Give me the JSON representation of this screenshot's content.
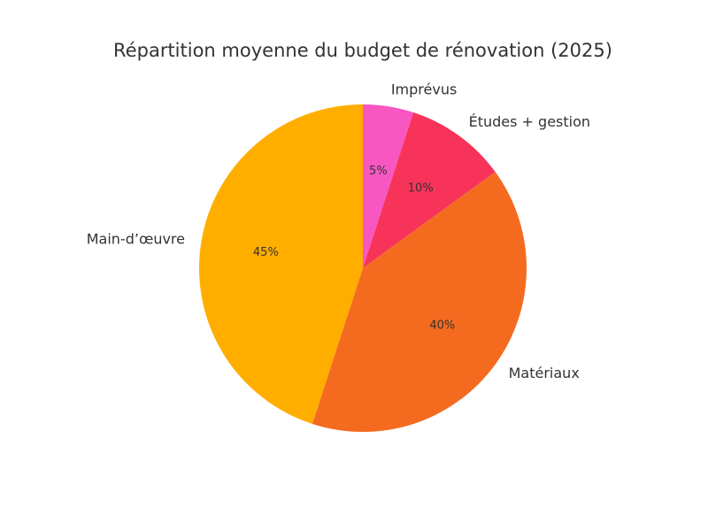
{
  "chart_data": {
    "type": "pie",
    "title": "Répartition moyenne du budget de rénovation (2025)",
    "slices": [
      {
        "label": "Imprévus",
        "value": 5,
        "pct_label": "5%",
        "color": "#f857c1"
      },
      {
        "label": "Études + gestion",
        "value": 10,
        "pct_label": "10%",
        "color": "#f7335a"
      },
      {
        "label": "Matériaux",
        "value": 40,
        "pct_label": "40%",
        "color": "#f46b20"
      },
      {
        "label": "Main-d’œuvre",
        "value": 45,
        "pct_label": "45%",
        "color": "#ffae00"
      }
    ],
    "start_angle_deg": 90,
    "direction": "clockwise"
  }
}
